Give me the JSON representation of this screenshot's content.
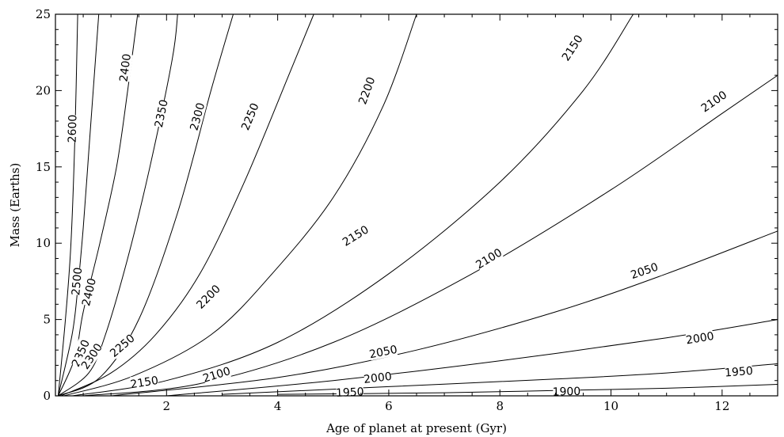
{
  "chart_data": {
    "type": "line",
    "title": "",
    "xlabel": "Age of planet at present (Gyr)",
    "ylabel": "Mass (Earths)",
    "xlim": [
      0,
      13
    ],
    "ylim": [
      0,
      25
    ],
    "xticks": [
      2,
      4,
      6,
      8,
      10,
      12
    ],
    "yticks": [
      0,
      5,
      10,
      15,
      20,
      25
    ],
    "grid": false,
    "series": [
      {
        "name": "2600",
        "x": [
          0.05,
          0.18,
          0.28,
          0.35,
          0.4
        ],
        "y": [
          0,
          5,
          10,
          17,
          25
        ],
        "label_at": [
          0.3,
          17.5
        ]
      },
      {
        "name": "2500",
        "x": [
          0.05,
          0.3,
          0.4,
          0.5,
          0.6,
          0.7,
          0.78
        ],
        "y": [
          0,
          4,
          7,
          11,
          16,
          21,
          25
        ],
        "label_at": [
          0.38,
          7.5
        ]
      },
      {
        "name": "2400",
        "x": [
          0.05,
          0.35,
          0.5,
          0.8,
          1.1,
          1.3,
          1.48
        ],
        "y": [
          0,
          2.5,
          5.5,
          10,
          15,
          20,
          25
        ],
        "label_at": [
          1.25,
          21.5
        ]
      },
      {
        "name": "2400",
        "x": [],
        "y": [],
        "label_at": [
          0.6,
          6.8
        ]
      },
      {
        "name": "2350",
        "x": [
          0.05,
          0.6,
          0.9,
          1.3,
          1.7,
          2.1,
          2.2
        ],
        "y": [
          0,
          1.5,
          4,
          9,
          15,
          22,
          25
        ],
        "label_at": [
          1.9,
          18.5
        ]
      },
      {
        "name": "2350",
        "x": [],
        "y": [],
        "label_at": [
          0.45,
          2.8
        ]
      },
      {
        "name": "2300",
        "x": [
          0.05,
          0.8,
          1.5,
          2.2,
          2.8,
          3.2
        ],
        "y": [
          0,
          1.2,
          5,
          12,
          20,
          25
        ],
        "label_at": [
          2.55,
          18.3
        ]
      },
      {
        "name": "2300",
        "x": [],
        "y": [],
        "label_at": [
          0.65,
          2.6
        ]
      },
      {
        "name": "2250",
        "x": [
          0.1,
          1.0,
          1.8,
          2.6,
          3.4,
          4.2,
          4.65
        ],
        "y": [
          0,
          1.5,
          4,
          8,
          14,
          21,
          25
        ],
        "label_at": [
          3.5,
          18.3
        ]
      },
      {
        "name": "2250",
        "x": [],
        "y": [],
        "label_at": [
          1.2,
          3.3
        ]
      },
      {
        "name": "2200",
        "x": [
          0.15,
          1.4,
          2.8,
          3.9,
          5.0,
          5.9,
          6.5
        ],
        "y": [
          0,
          1.3,
          4,
          8,
          13,
          19,
          25
        ],
        "label_at": [
          5.6,
          20.0
        ]
      },
      {
        "name": "2200",
        "x": [],
        "y": [],
        "label_at": [
          2.75,
          6.5
        ]
      },
      {
        "name": "2150",
        "x": [
          0.3,
          2.0,
          4.0,
          6.0,
          8.0,
          9.5,
          10.4
        ],
        "y": [
          0,
          1.0,
          3.5,
          8,
          14,
          20,
          25
        ],
        "label_at": [
          5.4,
          10.5
        ]
      },
      {
        "name": "2150",
        "x": [],
        "y": [],
        "label_at": [
          9.3,
          22.8
        ]
      },
      {
        "name": "2150",
        "x": [],
        "y": [],
        "label_at": [
          1.6,
          0.9
        ]
      },
      {
        "name": "2100",
        "x": [
          0.5,
          2.6,
          5.0,
          7.5,
          10.0,
          12.0,
          13.0
        ],
        "y": [
          0,
          0.8,
          3.5,
          8,
          13.5,
          18.5,
          21
        ],
        "label_at": [
          7.8,
          9.0
        ]
      },
      {
        "name": "2100",
        "x": [],
        "y": [],
        "label_at": [
          11.85,
          19.3
        ]
      },
      {
        "name": "2100",
        "x": [],
        "y": [],
        "label_at": [
          2.9,
          1.4
        ]
      },
      {
        "name": "2050",
        "x": [
          1.0,
          4.0,
          6.5,
          9.0,
          11.0,
          13.0
        ],
        "y": [
          0,
          1.2,
          3.0,
          5.5,
          8.0,
          10.8
        ],
        "label_at": [
          10.6,
          8.2
        ]
      },
      {
        "name": "2050",
        "x": [],
        "y": [],
        "label_at": [
          5.9,
          2.9
        ]
      },
      {
        "name": "2000",
        "x": [
          2.0,
          5.0,
          8.0,
          11.0,
          13.0
        ],
        "y": [
          0,
          1.0,
          2.3,
          3.8,
          5.0
        ],
        "label_at": [
          11.6,
          3.8
        ]
      },
      {
        "name": "2000",
        "x": [],
        "y": [],
        "label_at": [
          5.8,
          1.2
        ]
      },
      {
        "name": "1950",
        "x": [
          3.0,
          6.0,
          9.0,
          11.0,
          13.0
        ],
        "y": [
          0.1,
          0.6,
          1.1,
          1.5,
          2.1
        ],
        "label_at": [
          12.3,
          1.6
        ]
      },
      {
        "name": "1950",
        "x": [],
        "y": [],
        "label_at": [
          5.3,
          0.25
        ]
      },
      {
        "name": "1900",
        "x": [
          4.0,
          7.0,
          9.0,
          11.0,
          13.0
        ],
        "y": [
          0.1,
          0.2,
          0.35,
          0.5,
          0.75
        ],
        "label_at": [
          9.2,
          0.3
        ]
      }
    ]
  }
}
